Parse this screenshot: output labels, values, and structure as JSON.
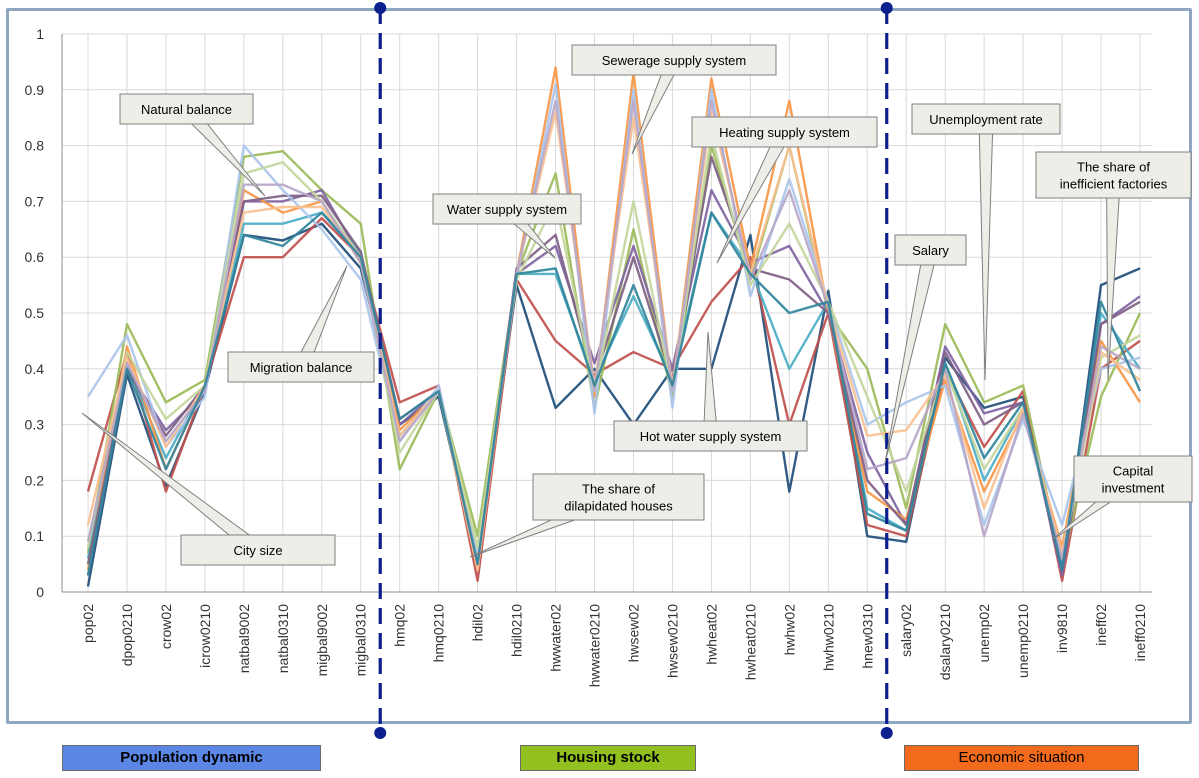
{
  "chart_data": {
    "type": "line",
    "title": "",
    "xlabel": "",
    "ylabel": "",
    "ylim": [
      0,
      1
    ],
    "yticks": [
      "0",
      "0.1",
      "0.2",
      "0.3",
      "0.4",
      "0.5",
      "0.6",
      "0.7",
      "0.8",
      "0.9",
      "1"
    ],
    "grid": true,
    "legend": "none",
    "categories": [
      "pop02",
      "dpop0210",
      "crow02",
      "icrow0210",
      "natbal9002",
      "natbal0310",
      "migbal9002",
      "migbal0310",
      "hmq02",
      "hmq0210",
      "hdil02",
      "hdil0210",
      "hwwater02",
      "hwwater0210",
      "hwsew02",
      "hwsew0210",
      "hwheat02",
      "hwheat0210",
      "hwhw02",
      "hwhw0210",
      "hnew0310",
      "salary02",
      "dsalary0210",
      "unemp02",
      "unemp0210",
      "inv9810",
      "ineff02",
      "ineff0210"
    ],
    "series": [
      {
        "color": "#1f4e79",
        "values": [
          0.01,
          0.39,
          0.19,
          0.36,
          0.64,
          0.63,
          0.66,
          0.58,
          0.3,
          0.35,
          0.05,
          0.55,
          0.33,
          0.4,
          0.3,
          0.4,
          0.4,
          0.64,
          0.18,
          0.54,
          0.1,
          0.09,
          0.42,
          0.33,
          0.35,
          0.03,
          0.55,
          0.58
        ]
      },
      {
        "color": "#c0504d",
        "values": [
          0.18,
          0.43,
          0.18,
          0.37,
          0.6,
          0.6,
          0.67,
          0.6,
          0.34,
          0.37,
          0.02,
          0.56,
          0.45,
          0.39,
          0.43,
          0.4,
          0.52,
          0.6,
          0.3,
          0.5,
          0.12,
          0.1,
          0.4,
          0.26,
          0.36,
          0.02,
          0.4,
          0.45
        ]
      },
      {
        "color": "#9bbb59",
        "values": [
          0.07,
          0.48,
          0.34,
          0.38,
          0.78,
          0.79,
          0.72,
          0.66,
          0.22,
          0.36,
          0.1,
          0.57,
          0.75,
          0.33,
          0.65,
          0.35,
          0.8,
          0.56,
          0.8,
          0.5,
          0.4,
          0.15,
          0.48,
          0.34,
          0.37,
          0.05,
          0.35,
          0.5
        ]
      },
      {
        "color": "#8064a2",
        "values": [
          0.03,
          0.4,
          0.29,
          0.36,
          0.7,
          0.7,
          0.72,
          0.6,
          0.3,
          0.36,
          0.06,
          0.57,
          0.62,
          0.41,
          0.62,
          0.4,
          0.72,
          0.59,
          0.62,
          0.5,
          0.25,
          0.12,
          0.44,
          0.32,
          0.34,
          0.03,
          0.48,
          0.53
        ]
      },
      {
        "color": "#4bacc6",
        "values": [
          0.06,
          0.41,
          0.24,
          0.37,
          0.66,
          0.66,
          0.68,
          0.61,
          0.28,
          0.36,
          0.05,
          0.57,
          0.57,
          0.38,
          0.53,
          0.38,
          0.68,
          0.58,
          0.4,
          0.52,
          0.15,
          0.11,
          0.41,
          0.2,
          0.33,
          0.05,
          0.5,
          0.4
        ]
      },
      {
        "color": "#f79646",
        "values": [
          0.04,
          0.44,
          0.22,
          0.37,
          0.72,
          0.68,
          0.7,
          0.59,
          0.29,
          0.36,
          0.04,
          0.57,
          0.94,
          0.35,
          0.93,
          0.36,
          0.92,
          0.58,
          0.88,
          0.5,
          0.18,
          0.13,
          0.38,
          0.18,
          0.32,
          0.08,
          0.45,
          0.34
        ]
      },
      {
        "color": "#7f6084",
        "values": [
          0.05,
          0.4,
          0.28,
          0.37,
          0.7,
          0.71,
          0.71,
          0.61,
          0.31,
          0.36,
          0.05,
          0.58,
          0.64,
          0.38,
          0.6,
          0.38,
          0.78,
          0.58,
          0.56,
          0.5,
          0.2,
          0.12,
          0.43,
          0.3,
          0.34,
          0.04,
          0.48,
          0.52
        ]
      },
      {
        "color": "#a9c4eb",
        "values": [
          0.35,
          0.46,
          0.26,
          0.35,
          0.8,
          0.72,
          0.65,
          0.56,
          0.27,
          0.37,
          0.06,
          0.56,
          0.91,
          0.32,
          0.9,
          0.33,
          0.9,
          0.53,
          0.74,
          0.52,
          0.3,
          0.34,
          0.37,
          0.12,
          0.31,
          0.12,
          0.4,
          0.42
        ]
      },
      {
        "color": "#c3d69b",
        "values": [
          0.08,
          0.43,
          0.31,
          0.37,
          0.75,
          0.77,
          0.7,
          0.6,
          0.25,
          0.36,
          0.08,
          0.56,
          0.7,
          0.36,
          0.7,
          0.36,
          0.82,
          0.55,
          0.66,
          0.52,
          0.35,
          0.18,
          0.4,
          0.22,
          0.33,
          0.06,
          0.42,
          0.46
        ]
      },
      {
        "color": "#fac090",
        "values": [
          0.12,
          0.42,
          0.26,
          0.37,
          0.68,
          0.69,
          0.69,
          0.6,
          0.28,
          0.36,
          0.04,
          0.57,
          0.86,
          0.37,
          0.85,
          0.37,
          0.86,
          0.57,
          0.8,
          0.51,
          0.28,
          0.29,
          0.39,
          0.15,
          0.33,
          0.07,
          0.43,
          0.38
        ]
      },
      {
        "color": "#b7a7c9",
        "values": [
          0.09,
          0.41,
          0.27,
          0.36,
          0.73,
          0.73,
          0.7,
          0.59,
          0.27,
          0.36,
          0.05,
          0.57,
          0.88,
          0.36,
          0.88,
          0.36,
          0.88,
          0.56,
          0.72,
          0.51,
          0.22,
          0.24,
          0.4,
          0.1,
          0.32,
          0.06,
          0.44,
          0.4
        ]
      },
      {
        "color": "#31859c",
        "values": [
          0.03,
          0.4,
          0.22,
          0.37,
          0.64,
          0.62,
          0.68,
          0.6,
          0.31,
          0.36,
          0.05,
          0.57,
          0.58,
          0.37,
          0.55,
          0.37,
          0.68,
          0.57,
          0.5,
          0.52,
          0.14,
          0.11,
          0.41,
          0.24,
          0.34,
          0.04,
          0.52,
          0.36
        ]
      }
    ],
    "separators_after": [
      "migbal0310",
      "hnew0310"
    ],
    "annotations": [
      {
        "text": "Natural balance"
      },
      {
        "text": "Migration balance"
      },
      {
        "text": "City size"
      },
      {
        "text": "Sewerage  supply system"
      },
      {
        "text": "Heating  supply system"
      },
      {
        "text": "Water supply system"
      },
      {
        "text": "Hot water supply system"
      },
      {
        "text": "The share of dilapidated houses"
      },
      {
        "text": "Unemployment rate"
      },
      {
        "text": "The share of inefficient factories"
      },
      {
        "text": "Salary"
      },
      {
        "text": "Capital investment"
      }
    ],
    "groups": [
      {
        "label": "Population dynamic",
        "color": "#5b86e5"
      },
      {
        "label": "Housing stock",
        "color": "#92c01f"
      },
      {
        "label": "Economic situation",
        "color": "#f26b1d"
      }
    ]
  }
}
